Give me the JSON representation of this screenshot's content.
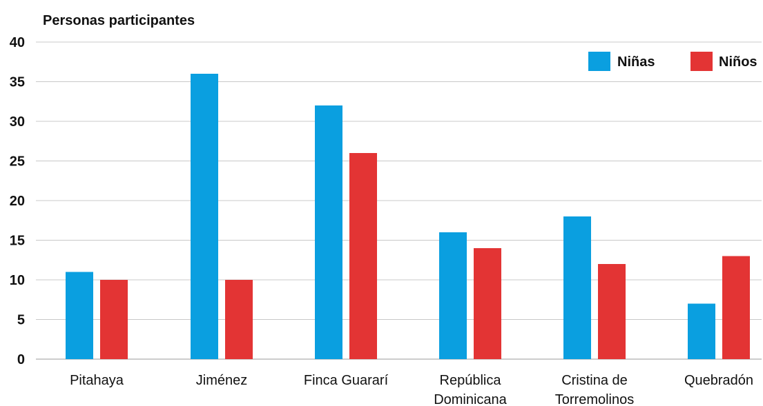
{
  "chart_data": {
    "type": "bar",
    "title": "",
    "ylabel": "Personas participantes",
    "xlabel": "",
    "ylim": [
      0,
      40
    ],
    "yticks": [
      0,
      5,
      10,
      15,
      20,
      25,
      30,
      35,
      40
    ],
    "grid": true,
    "legend_position": "top-right",
    "categories": [
      [
        "Pitahaya"
      ],
      [
        "Jiménez"
      ],
      [
        "Finca Guararí"
      ],
      [
        "República",
        "Dominicana"
      ],
      [
        "Cristina de",
        "Torremolinos"
      ],
      [
        "Quebradón"
      ]
    ],
    "series": [
      {
        "name": "Niñas",
        "color": "#0a9fe0",
        "values": [
          11,
          36,
          32,
          16,
          18,
          7
        ]
      },
      {
        "name": "Niños",
        "color": "#e33434",
        "values": [
          10,
          10,
          26,
          14,
          12,
          13
        ]
      }
    ]
  }
}
